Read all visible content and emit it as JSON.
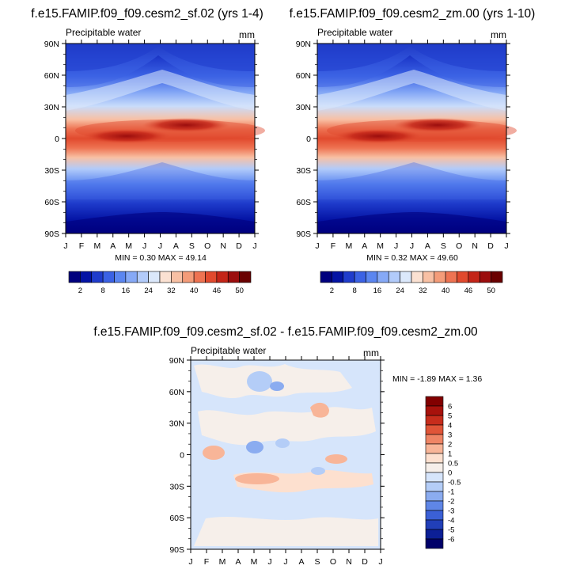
{
  "chart_data": [
    {
      "type": "heatmap",
      "title": "f.e15.FAMIP.f09_f09.cesm2_sf.02 (yrs 1-4)",
      "variable": "Precipitable water",
      "units": "mm",
      "stats": "MIN =   0.30 MAX =  49.14",
      "x_ticks": [
        "J",
        "F",
        "M",
        "A",
        "M",
        "J",
        "J",
        "A",
        "S",
        "O",
        "N",
        "D",
        "J"
      ],
      "y_ticks": [
        "90N",
        "60N",
        "30N",
        "0",
        "30S",
        "60S",
        "90S"
      ],
      "min": 0.3,
      "max": 49.14,
      "colorbar": {
        "labels": [
          "2",
          "8",
          "16",
          "24",
          "32",
          "40",
          "46",
          "50"
        ]
      }
    },
    {
      "type": "heatmap",
      "title": "f.e15.FAMIP.f09_f09.cesm2_zm.00 (yrs 1-10)",
      "variable": "Precipitable water",
      "units": "mm",
      "stats": "MIN =   0.32 MAX =  49.60",
      "x_ticks": [
        "J",
        "F",
        "M",
        "A",
        "M",
        "J",
        "J",
        "A",
        "S",
        "O",
        "N",
        "D",
        "J"
      ],
      "y_ticks": [
        "90N",
        "60N",
        "30N",
        "0",
        "30S",
        "60S",
        "90S"
      ],
      "min": 0.32,
      "max": 49.6,
      "colorbar": {
        "labels": [
          "2",
          "8",
          "16",
          "24",
          "32",
          "40",
          "46",
          "50"
        ]
      }
    },
    {
      "type": "heatmap",
      "title": "f.e15.FAMIP.f09_f09.cesm2_sf.02 - f.e15.FAMIP.f09_f09.cesm2_zm.00",
      "variable": "Precipitable water",
      "units": "mm",
      "stats": "MIN =  -1.89 MAX =   1.36",
      "x_ticks": [
        "J",
        "F",
        "M",
        "A",
        "M",
        "J",
        "J",
        "A",
        "S",
        "O",
        "N",
        "D",
        "J"
      ],
      "y_ticks": [
        "90N",
        "60N",
        "30N",
        "0",
        "30S",
        "60S",
        "90S"
      ],
      "min": -1.89,
      "max": 1.36,
      "colorbar": {
        "labels": [
          "6",
          "5",
          "4",
          "3",
          "2",
          "1",
          "0.5",
          "0",
          "-0.5",
          "-1",
          "-2",
          "-3",
          "-4",
          "-5",
          "-6"
        ]
      }
    }
  ],
  "colors": {
    "seq": [
      "#00007e",
      "#0413a4",
      "#1f3ccc",
      "#3b62e4",
      "#5b86f0",
      "#86a9f6",
      "#b2cbfa",
      "#dbe8fb",
      "#fbe1d2",
      "#f8c0a4",
      "#f49c79",
      "#ee7352",
      "#e14a2e",
      "#c42518",
      "#9b0d0d",
      "#6a0000"
    ],
    "diff": [
      "#820000",
      "#a8120c",
      "#c72d1c",
      "#e05538",
      "#ef8565",
      "#f8b598",
      "#fde0cf",
      "#f6efea",
      "#d6e5fb",
      "#b4cdf7",
      "#8bacf0",
      "#5f86e6",
      "#3b60d6",
      "#213fb8",
      "#0c1f96",
      "#000069"
    ]
  }
}
